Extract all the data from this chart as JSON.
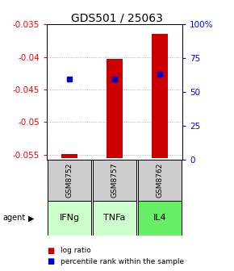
{
  "title": "GDS501 / 25063",
  "samples": [
    "GSM8752",
    "GSM8757",
    "GSM8762"
  ],
  "agents": [
    "IFNg",
    "TNFa",
    "IL4"
  ],
  "log_ratios": [
    -0.0549,
    -0.0403,
    -0.0364
  ],
  "log_ratio_base": -0.0555,
  "percentile_ranks": [
    0.595,
    0.595,
    0.635
  ],
  "ylim_left": [
    -0.0558,
    -0.035
  ],
  "yticks_left": [
    -0.055,
    -0.05,
    -0.045,
    -0.04,
    -0.035
  ],
  "ytick_labels_left": [
    "-0.055",
    "-0.05",
    "-0.045",
    "-0.04",
    "-0.035"
  ],
  "yticks_right": [
    0.0,
    0.25,
    0.5,
    0.75,
    1.0
  ],
  "ytick_labels_right": [
    "0",
    "25",
    "50",
    "75",
    "100%"
  ],
  "bar_color": "#cc0000",
  "dot_color": "#0000cc",
  "agent_colors": [
    "#ccffcc",
    "#ccffcc",
    "#66ee66"
  ],
  "sample_box_color": "#cccccc",
  "title_fontsize": 10,
  "tick_fontsize": 7.5,
  "bar_width": 0.35
}
